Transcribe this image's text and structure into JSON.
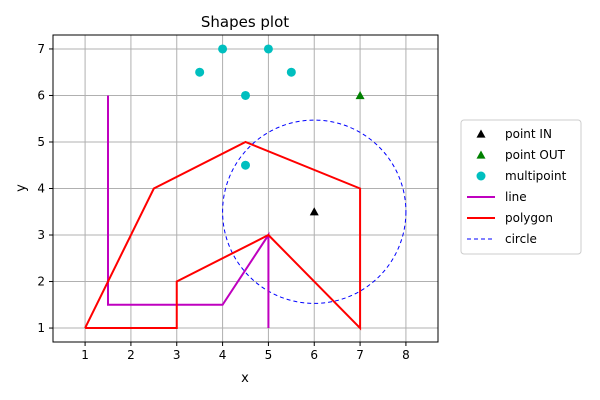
{
  "chart_data": {
    "type": "scatter",
    "title": "Shapes plot",
    "xlabel": "x",
    "ylabel": "y",
    "xlim": [
      0.3,
      8.7
    ],
    "ylim": [
      0.7,
      7.3
    ],
    "xticks": [
      1,
      2,
      3,
      4,
      5,
      6,
      7,
      8
    ],
    "yticks": [
      1,
      2,
      3,
      4,
      5,
      6,
      7
    ],
    "grid": true,
    "legend_position": "right",
    "series": [
      {
        "name": "point IN",
        "kind": "marker",
        "marker": "triangle",
        "color": "#000000",
        "points": [
          [
            6.0,
            3.5
          ]
        ]
      },
      {
        "name": "point OUT",
        "kind": "marker",
        "marker": "triangle",
        "color": "#008000",
        "points": [
          [
            7.0,
            6.0
          ]
        ]
      },
      {
        "name": "multipoint",
        "kind": "marker",
        "marker": "circle",
        "color": "#00bfbf",
        "points": [
          [
            3.5,
            6.5
          ],
          [
            4.0,
            7.0
          ],
          [
            4.5,
            6.0
          ],
          [
            5.0,
            7.0
          ],
          [
            5.5,
            6.5
          ],
          [
            4.5,
            4.5
          ]
        ]
      },
      {
        "name": "line",
        "kind": "line",
        "color": "#bf00bf",
        "dashed": false,
        "points": [
          [
            1.5,
            6.0
          ],
          [
            1.5,
            1.5
          ],
          [
            4.0,
            1.5
          ],
          [
            5.0,
            3.0
          ],
          [
            5.0,
            1.0
          ]
        ]
      },
      {
        "name": "polygon",
        "kind": "line",
        "color": "#ff0000",
        "dashed": false,
        "points": [
          [
            1.0,
            1.0
          ],
          [
            3.0,
            1.0
          ],
          [
            3.0,
            2.0
          ],
          [
            5.0,
            3.0
          ],
          [
            7.0,
            1.0
          ],
          [
            7.0,
            4.0
          ],
          [
            4.5,
            5.0
          ],
          [
            2.5,
            4.0
          ],
          [
            1.0,
            1.0
          ]
        ]
      },
      {
        "name": "circle",
        "kind": "circle",
        "color": "#0000ff",
        "dashed": true,
        "center": [
          6.0,
          3.5
        ],
        "radius": 2.0
      }
    ]
  }
}
